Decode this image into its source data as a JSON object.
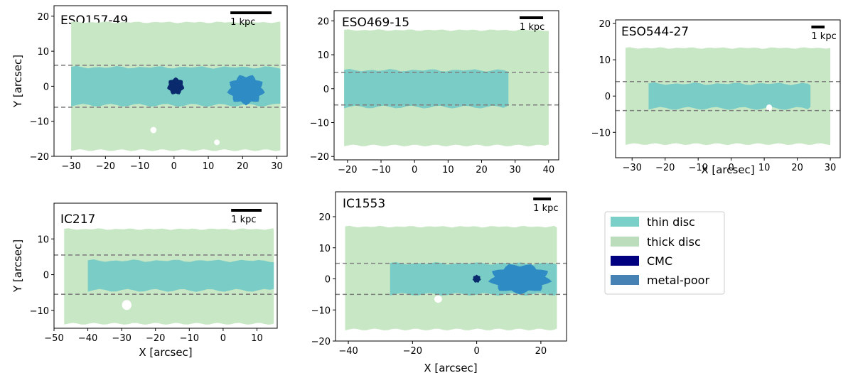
{
  "chart_data": {
    "type": "scatter",
    "colors": {
      "thin": "#7acdc6",
      "thick": "#c8e7c5",
      "cmc": "#0a2a6e",
      "metal_poor": "#2f8bc4",
      "dash": "#808080",
      "legend_thin": "#7ad0c8",
      "legend_thick": "#bcddbb",
      "legend_cmc": "#000080",
      "legend_metal_poor": "#4682b4"
    },
    "legend": {
      "entries": [
        {
          "key": "thin",
          "label": "thin disc"
        },
        {
          "key": "thick",
          "label": "thick disc"
        },
        {
          "key": "cmc",
          "label": "CMC"
        },
        {
          "key": "metal_poor",
          "label": "metal-poor"
        }
      ]
    },
    "scalebar_label": "1 kpc",
    "panels": [
      {
        "id": "eso157",
        "title": "ESO157-49",
        "xlim": [
          -35,
          33
        ],
        "ylim": [
          -20,
          23
        ],
        "xticks": [
          -30,
          -20,
          -10,
          0,
          10,
          20,
          30
        ],
        "yticks": [
          -20,
          -10,
          0,
          10,
          20
        ],
        "xlabel": "",
        "ylabel": "Y [arcsec]",
        "dashes": [
          6,
          -6
        ],
        "thick": [
          -30,
          31,
          -18,
          18
        ],
        "thin": [
          -30,
          31,
          -5,
          5
        ],
        "cmc": [
          {
            "x": 0.5,
            "y": 0,
            "r": 2.3
          }
        ],
        "metal_poor": [
          {
            "x": 21,
            "y": -1,
            "w": 10,
            "h": 8
          }
        ],
        "holes": [
          {
            "x": -6,
            "y": -12.5,
            "r": 0.9
          },
          {
            "x": 12.5,
            "y": -16,
            "r": 0.8
          }
        ],
        "scalebar_len": 12
      },
      {
        "id": "eso469",
        "title": "ESO469-15",
        "xlim": [
          -24,
          43
        ],
        "ylim": [
          -21,
          23
        ],
        "xticks": [
          -20,
          -10,
          0,
          10,
          20,
          30,
          40
        ],
        "yticks": [
          -20,
          -10,
          0,
          10,
          20
        ],
        "xlabel": "",
        "ylabel": "",
        "dashes": [
          4.8,
          -4.8
        ],
        "thick": [
          -21,
          40,
          -16.5,
          17
        ],
        "thin": [
          -21,
          28,
          -5,
          5
        ],
        "cmc": [],
        "metal_poor": [],
        "holes": [],
        "scalebar_len": 7
      },
      {
        "id": "eso544",
        "title": "ESO544-27",
        "xlim": [
          -35,
          33
        ],
        "ylim": [
          -17,
          21
        ],
        "xticks": [
          -30,
          -20,
          -10,
          0,
          10,
          20,
          30
        ],
        "yticks": [
          -10,
          0,
          10,
          20
        ],
        "xlabel": "X [arcsec]",
        "ylabel": "",
        "dashes": [
          4,
          -4
        ],
        "thick": [
          -32,
          30,
          -13,
          13
        ],
        "thin": [
          -25,
          24,
          -3,
          3
        ],
        "cmc": [],
        "metal_poor": [],
        "holes": [
          {
            "x": 11.5,
            "y": -3.2,
            "r": 0.9
          }
        ],
        "scalebar_len": 4
      },
      {
        "id": "ic217",
        "title": "IC217",
        "xlim": [
          -50,
          16
        ],
        "ylim": [
          -15,
          20
        ],
        "xticks": [
          -50,
          -40,
          -30,
          -20,
          -10,
          0,
          10
        ],
        "yticks": [
          -10,
          0,
          10
        ],
        "xlabel": "X [arcsec]",
        "ylabel": "Y [arcsec]",
        "dashes": [
          5.5,
          -5.5
        ],
        "thick": [
          -47,
          15,
          -13.5,
          12.5
        ],
        "thin": [
          -40,
          15,
          -4,
          3.5
        ],
        "cmc": [],
        "metal_poor": [],
        "holes": [
          {
            "x": -28.5,
            "y": -8.5,
            "r": 1.4
          }
        ],
        "scalebar_len": 9
      },
      {
        "id": "ic1553",
        "title": "IC1553",
        "xlim": [
          -44,
          28
        ],
        "ylim": [
          -20,
          28
        ],
        "xticks": [
          -40,
          -20,
          0,
          20
        ],
        "yticks": [
          -20,
          -10,
          0,
          10,
          20
        ],
        "xlabel": "X [arcsec]",
        "ylabel": "",
        "dashes": [
          5,
          -5
        ],
        "thick": [
          -41,
          25,
          -16,
          16.5
        ],
        "thin": [
          -27,
          25,
          -4.5,
          4.5
        ],
        "cmc": [
          {
            "x": 0,
            "y": 0,
            "r": 1.2
          }
        ],
        "metal_poor": [
          {
            "x": 13.5,
            "y": 0,
            "w": 18,
            "h": 9
          }
        ],
        "holes": [
          {
            "x": -12,
            "y": -6.5,
            "r": 1.2
          }
        ],
        "scalebar_len": 5.5
      }
    ]
  }
}
